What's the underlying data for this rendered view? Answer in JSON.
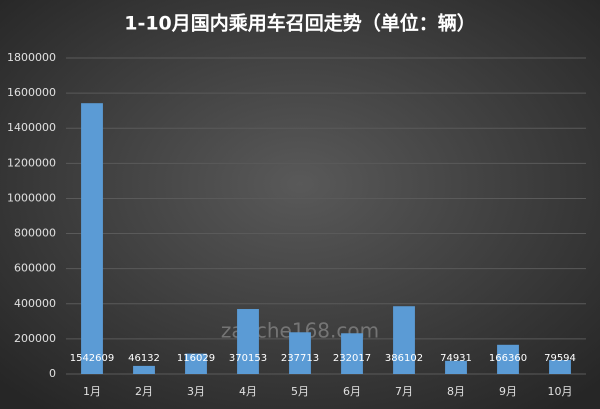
{
  "chart_data": {
    "type": "bar",
    "title": "1-10月国内乘用车召回走势（单位：辆）",
    "watermark": "zaoche168.com",
    "categories": [
      "1月",
      "2月",
      "3月",
      "4月",
      "5月",
      "6月",
      "7月",
      "8月",
      "9月",
      "10月"
    ],
    "values": [
      1542609,
      46132,
      116029,
      370153,
      237713,
      232017,
      386102,
      74931,
      166360,
      79594
    ],
    "color": "#5b9bd5",
    "ylim": [
      0,
      1800000
    ],
    "yticks": [
      0,
      200000,
      400000,
      600000,
      800000,
      1000000,
      1200000,
      1400000,
      1600000,
      1800000
    ],
    "grid": true
  }
}
